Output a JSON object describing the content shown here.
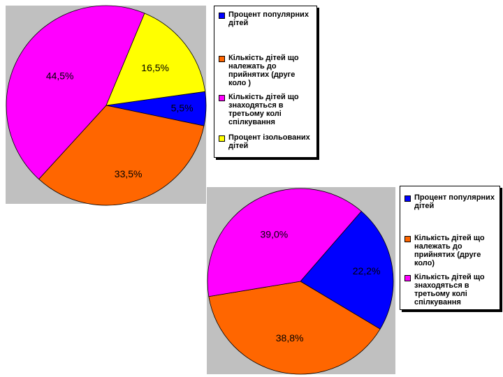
{
  "chart_data": [
    {
      "type": "pie",
      "categories": [
        "Процент популярних дітей",
        "Кількість дітей що належать до прийнятих (друге коло )",
        "Кількість дітей що знаходяться в третьому колі спілкування",
        "Процент ізольованих дітей"
      ],
      "values": [
        5.5,
        33.5,
        44.5,
        16.5
      ],
      "data_labels": [
        "5,5%",
        "33,5%",
        "44,5%",
        "16,5%"
      ],
      "colors": [
        "#0000ff",
        "#ff6600",
        "#ff00ff",
        "#ffff00"
      ],
      "legend": {
        "placement": "right",
        "items": [
          {
            "label": "Процент популярних дітей",
            "color": "#0000ff"
          },
          {
            "label": "Кількість дітей що належать до прийнятих (друге коло )",
            "color": "#ff6600"
          },
          {
            "label": "Кількість дітей що знаходяться в третьому колі спілкування",
            "color": "#ff00ff"
          },
          {
            "label": "Процент ізольованих дітей",
            "color": "#ffff00"
          }
        ]
      }
    },
    {
      "type": "pie",
      "categories": [
        "Процент популярних дітей",
        "Кількість дітей що належать до прийнятих (друге коло)",
        "Кількість дітей що знаходяться в третьому колі спілкування"
      ],
      "values": [
        22.2,
        38.8,
        39.0
      ],
      "data_labels": [
        "22,2%",
        "38,8%",
        "39,0%"
      ],
      "colors": [
        "#0000ff",
        "#ff6600",
        "#ff00ff"
      ],
      "legend": {
        "placement": "right",
        "items": [
          {
            "label": "Процент популярних дітей",
            "color": "#0000ff"
          },
          {
            "label": "Кількість дітей що належать до прийнятих (друге коло)",
            "color": "#ff6600"
          },
          {
            "label": "Кількість дітей що знаходяться в третьому колі спілкування",
            "color": "#ff00ff"
          }
        ]
      }
    }
  ]
}
